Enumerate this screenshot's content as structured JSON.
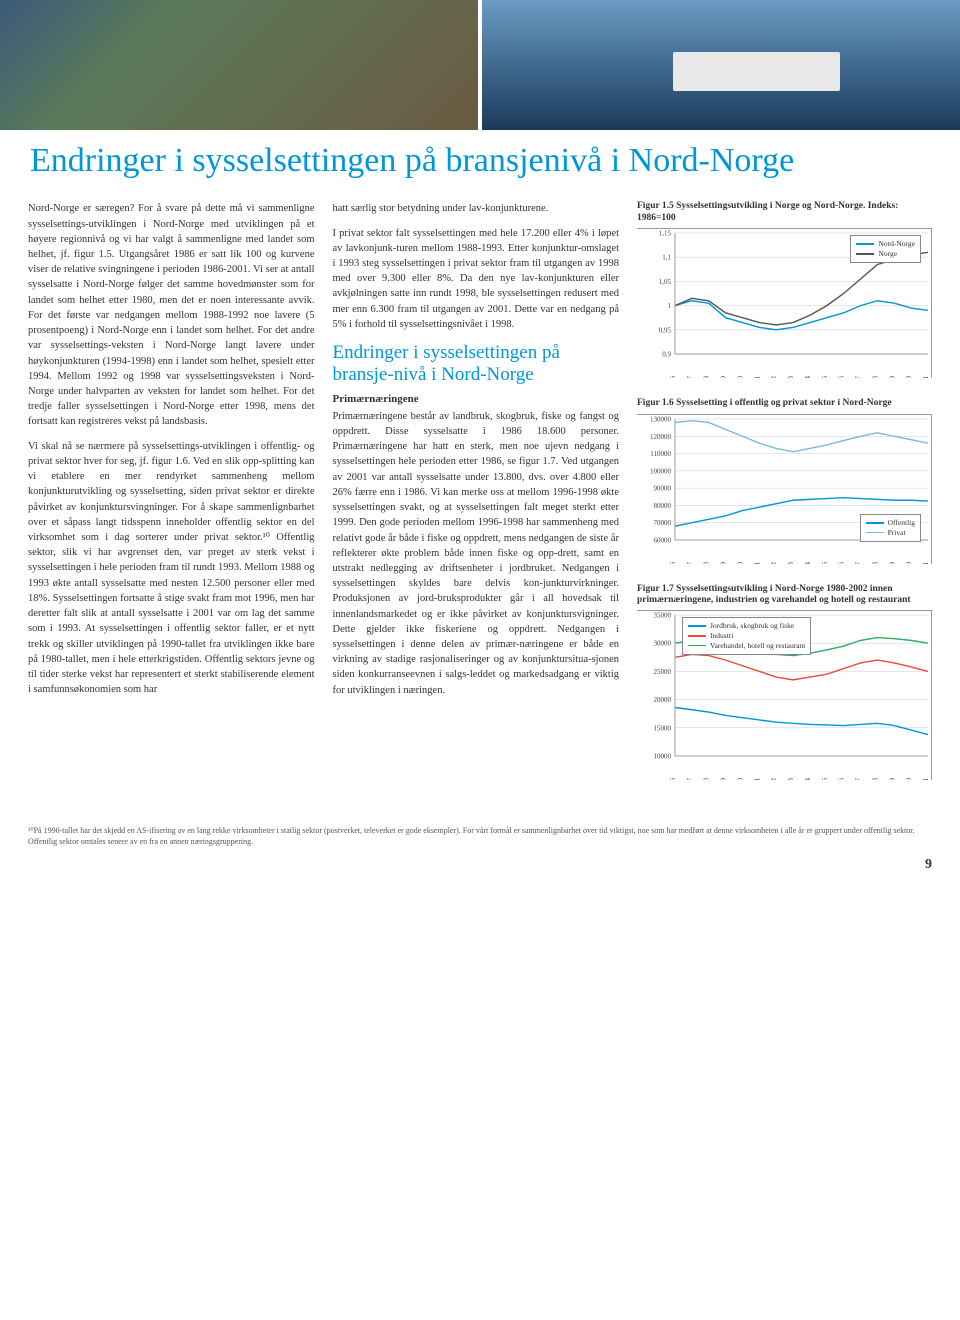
{
  "page_number": "9",
  "header_title": "Endringer i sysselsettingen på bransjenivå i Nord-Norge",
  "col1": {
    "p1": "Nord-Norge er særegen? For å svare på dette må vi sammenligne sysselsettings-utviklingen i Nord-Norge med utviklingen på et høyere regionnivå og vi har valgt å sammenligne med landet som helhet, jf. figur 1.5. Utgangsåret 1986 er satt lik 100 og kurvene viser de relative svingningene i perioden 1986-2001. Vi ser at antall sysselsatte i Nord-Norge følger det samme hovedmønster som for landet som helhet etter 1980, men det er noen interessante avvik. For det første var nedgangen mellom 1988-1992 noe lavere (5 prosentpoeng) i Nord-Norge enn i landet som helhet. For det andre var sysselsettings-veksten i Nord-Norge langt lavere under høykonjunkturen (1994-1998) enn i landet som helhet, spesielt etter 1994. Mellom 1992 og 1998 var sysselsettingsveksten i Nord-Norge under halvparten av veksten for landet som helhet. For det tredje faller sysselsettingen i Nord-Norge etter 1998, mens det fortsatt kan registreres vekst på landsbasis.",
    "p2": "Vi skal nå se nærmere på sysselsettings-utviklingen i offentlig- og privat sektor hver for seg, jf. figur 1.6. Ved en slik opp-splitting kan vi etablere en mer rendyrket sammenheng mellom konjunkturutvikling og sysselsetting, siden privat sektor er direkte påvirket av konjunktursvingninger. For å skape sammenlignbarhet over et såpass langt tidsspenn inneholder offentlig sektor en del virksomhet som i dag sorterer under privat sektor.¹⁰ Offentlig sektor, slik vi har avgrenset den, var preget av sterk vekst i sysselsettingen i hele perioden fram til rundt 1993. Mellom 1988 og 1993 økte antall sysselsatte med nesten 12.500 personer eller med 18%. Sysselsettingen fortsatte å stige svakt fram mot 1996, men har deretter falt slik at antall sysselsatte i 2001 var om lag det samme som i 1993. At sysselsettingen i offentlig sektor faller, er et nytt trekk og skiller utviklingen på 1990-tallet fra utviklingen ikke bare på 1980-tallet, men i hele etterkrigstiden. Offentlig sektors jevne og til tider sterke vekst har representert et sterkt stabiliserende element i samfunnsøkonomien som har"
  },
  "col2": {
    "p1": "hatt særlig stor betydning under lav-konjunkturene.",
    "p2": "I privat sektor falt sysselsettingen med hele 17.200 eller 4% i løpet av lavkonjunk-turen mellom 1988-1993. Etter konjunktur-omslaget i 1993 steg sysselsettingen i privat sektor fram til utgangen av 1998 med over 9.300 eller 8%. Da den nye lav-konjunkturen eller avkjølningen satte inn rundt 1998, ble sysselsettingen redusert med mer enn 6.300 fram til utgangen av 2001. Dette var en nedgang på 5% i forhold til sysselsettingsnivået i 1998.",
    "subhead": "Endringer i sysselsettingen på bransje-nivå i Nord-Norge",
    "parahead": "Primærnæringene",
    "p3": "Primærnæringene består av landbruk, skogbruk, fiske og fangst og oppdrett. Disse sysselsatte i 1986 18.600 personer. Primærnæringene har hatt en sterk, men noe ujevn nedgang i sysselsettingen hele perioden etter 1986, se figur 1.7. Ved utgangen av 2001 var antall sysselsatte under 13.800, dvs. over 4.800 eller 26% færre enn i 1986. Vi kan merke oss at mellom 1996-1998 økte sysselsettingen svakt, og at sysselsettingen falt meget sterkt etter 1999. Den gode perioden mellom 1996-1998 har sammenheng med relativt gode år både i fiske og oppdrett, mens nedgangen de siste år reflekterer økte problem både innen fiske og opp-drett, samt en utstrakt nedlegging av driftsenheter i jordbruket. Nedgangen i sysselsettingen skyldes bare delvis kon-junkturvirkninger. Produksjonen av jord-bruksprodukter går i all hovedsak til innenlandsmarkedet og er ikke påvirket av konjunktursvigninger. Dette gjelder ikke fiskeriene og oppdrett. Nedgangen i sysselsettingen i denne delen av primær-næringene er både en virkning av stadige rasjonaliseringer og av konjunktursitua-sjonen siden konkurranseevnen i salgs-leddet og markedsadgang er viktig for utviklingen i næringen."
  },
  "charts": {
    "years": [
      "1986",
      "1987",
      "1988",
      "1989",
      "1990",
      "1991",
      "1992",
      "1993",
      "1994",
      "1995",
      "1996",
      "1997",
      "1998",
      "1999",
      "2000",
      "2001"
    ],
    "c1": {
      "title": "Figur 1.5 Sysselsettingsutvikling i Norge og Nord-Norge. Indeks: 1986=100",
      "ylim": [
        0.9,
        1.15
      ],
      "yticks": [
        "0,9",
        "0,95",
        "1",
        "1,05",
        "1,1",
        "1,15"
      ],
      "series": [
        {
          "name": "Nord-Norge",
          "color": "#0097d6",
          "data": [
            1.0,
            1.01,
            1.005,
            0.975,
            0.965,
            0.955,
            0.95,
            0.955,
            0.965,
            0.975,
            0.985,
            1.0,
            1.01,
            1.005,
            0.995,
            0.99
          ]
        },
        {
          "name": "Norge",
          "color": "#555555",
          "data": [
            1.0,
            1.015,
            1.01,
            0.985,
            0.975,
            0.965,
            0.96,
            0.965,
            0.98,
            1.0,
            1.025,
            1.055,
            1.085,
            1.095,
            1.105,
            1.11
          ]
        }
      ]
    },
    "c2": {
      "title": "Figur 1.6 Sysselsetting i offentlig og privat sektor i Nord-Norge",
      "ylim": [
        60000,
        130000
      ],
      "yticks": [
        "60000",
        "70000",
        "80000",
        "90000",
        "100000",
        "110000",
        "120000",
        "130000"
      ],
      "series": [
        {
          "name": "Offentlig",
          "color": "#0097d6",
          "data": [
            68000,
            70000,
            72000,
            74000,
            77000,
            79000,
            81000,
            83000,
            83500,
            84000,
            84500,
            84000,
            83500,
            83000,
            83000,
            82500
          ]
        },
        {
          "name": "Privat",
          "color": "#7ab8dc",
          "data": [
            128000,
            129000,
            128000,
            124000,
            120000,
            116000,
            113000,
            111000,
            113000,
            115000,
            117500,
            120000,
            122000,
            120000,
            118000,
            116000
          ]
        }
      ]
    },
    "c3": {
      "title": "Figur 1.7 Sysselsettingsutvikling i Nord-Norge 1980-2002 innen primærnæringene, industrien og varehandel og hotell og restaurant",
      "ylim": [
        10000,
        35000
      ],
      "yticks": [
        "10000",
        "15000",
        "20000",
        "25000",
        "30000",
        "35000"
      ],
      "series": [
        {
          "name": "Jordbruk, skogbruk og fiske",
          "color": "#0097d6",
          "data": [
            18600,
            18200,
            17800,
            17200,
            16800,
            16400,
            16000,
            15800,
            15600,
            15500,
            15400,
            15600,
            15800,
            15400,
            14600,
            13800
          ]
        },
        {
          "name": "Industri",
          "color": "#e74c3c",
          "data": [
            27500,
            28000,
            27800,
            27000,
            26000,
            25000,
            24000,
            23500,
            24000,
            24500,
            25500,
            26500,
            27000,
            26500,
            25800,
            25000
          ]
        },
        {
          "name": "Varehandel, hotell og restaurant",
          "color": "#27ae60",
          "data": [
            30000,
            30500,
            30800,
            30000,
            29200,
            28500,
            28000,
            27800,
            28200,
            28800,
            29500,
            30500,
            31000,
            30800,
            30500,
            30000
          ]
        }
      ]
    }
  },
  "footnote": "¹⁰På 1990-tallet har det skjedd en AS-ifisering av en lang rekke virksomheter i statlig sektor (postverket, televerket er gode eksempler). For vårt formål er sammenlignbarhet over tid viktigst, noe som har medført at denne virksomheten i alle år er gruppert under offentlig sektor. Offentlig sektor omtales senere av en fra en annen næringsgruppering."
}
